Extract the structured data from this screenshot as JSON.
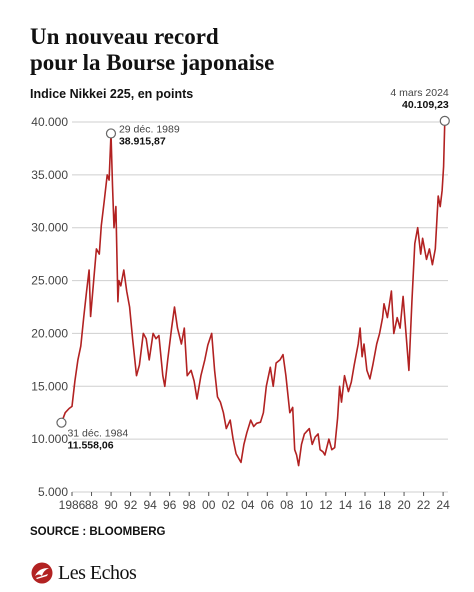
{
  "header": {
    "title_line1": "Un nouveau record",
    "title_line2": "pour la Bourse japonaise",
    "subtitle": "Indice Nikkei 225, en points"
  },
  "footer": {
    "source": "SOURCE : BLOOMBERG",
    "logo_text": "Les Echos"
  },
  "colors": {
    "line": "#b22222",
    "grid": "#cfcfcf",
    "text": "#111111",
    "logo_mark": "#b22222"
  },
  "chart_data": {
    "type": "line",
    "title": "Un nouveau record pour la Bourse japonaise",
    "subtitle": "Indice Nikkei 225, en points",
    "xlabel": "",
    "ylabel": "",
    "ylim": [
      5000,
      40000
    ],
    "xlim": [
      1986,
      2024.5
    ],
    "grid": true,
    "yticks": [
      5000,
      10000,
      15000,
      20000,
      25000,
      30000,
      35000,
      40000
    ],
    "ytick_labels": [
      "5.000",
      "10.000",
      "15.000",
      "20.000",
      "25.000",
      "30.000",
      "35.000",
      "40.000"
    ],
    "xticks": [
      1986,
      1988,
      1990,
      1992,
      1994,
      1996,
      1998,
      2000,
      2002,
      2004,
      2006,
      2008,
      2010,
      2012,
      2014,
      2016,
      2018,
      2020,
      2022,
      2024
    ],
    "xtick_labels": [
      "1986",
      "88",
      "90",
      "92",
      "94",
      "96",
      "98",
      "00",
      "02",
      "04",
      "06",
      "08",
      "10",
      "12",
      "14",
      "16",
      "18",
      "20",
      "22",
      "24"
    ],
    "series": [
      {
        "x": [
          1984.92,
          1985.3,
          1985.7,
          1986.0,
          1986.3,
          1986.6,
          1986.9,
          1987.2,
          1987.5,
          1987.75,
          1987.9,
          1988.2,
          1988.5,
          1988.8,
          1989.0,
          1989.3,
          1989.6,
          1989.8,
          1989.99,
          1990.15,
          1990.3,
          1990.5,
          1990.7,
          1990.8,
          1991.0,
          1991.3,
          1991.6,
          1991.9,
          1992.2,
          1992.6,
          1992.9,
          1993.3,
          1993.6,
          1993.9,
          1994.3,
          1994.6,
          1994.9,
          1995.3,
          1995.5,
          1995.8,
          1996.2,
          1996.5,
          1996.8,
          1997.2,
          1997.5,
          1997.8,
          1998.2,
          1998.5,
          1998.8,
          1999.2,
          1999.6,
          1999.9,
          2000.3,
          2000.6,
          2000.9,
          2001.2,
          2001.5,
          2001.8,
          2002.2,
          2002.5,
          2002.8,
          2003.3,
          2003.6,
          2003.9,
          2004.3,
          2004.6,
          2004.9,
          2005.3,
          2005.6,
          2005.9,
          2006.3,
          2006.6,
          2006.9,
          2007.3,
          2007.6,
          2007.9,
          2008.3,
          2008.6,
          2008.8,
          2009.0,
          2009.2,
          2009.5,
          2009.8,
          2010.3,
          2010.6,
          2010.9,
          2011.2,
          2011.4,
          2011.7,
          2011.9,
          2012.3,
          2012.6,
          2012.9,
          2013.2,
          2013.4,
          2013.6,
          2013.9,
          2014.3,
          2014.6,
          2014.9,
          2015.3,
          2015.5,
          2015.7,
          2015.9,
          2016.2,
          2016.5,
          2016.8,
          2017.2,
          2017.5,
          2017.8,
          2017.95,
          2018.3,
          2018.7,
          2018.95,
          2019.3,
          2019.6,
          2019.9,
          2020.2,
          2020.5,
          2020.8,
          2021.1,
          2021.4,
          2021.7,
          2021.9,
          2022.3,
          2022.6,
          2022.9,
          2023.2,
          2023.5,
          2023.7,
          2023.9,
          2024.05,
          2024.17
        ],
        "values": [
          11558,
          12500,
          12900,
          13100,
          15500,
          17500,
          18800,
          21500,
          24000,
          26000,
          21600,
          24800,
          28000,
          27500,
          30200,
          32500,
          35000,
          34500,
          38916,
          34000,
          30000,
          32000,
          23000,
          25000,
          24500,
          26000,
          24000,
          22500,
          19500,
          16000,
          17000,
          20000,
          19500,
          17500,
          20000,
          19500,
          19800,
          16000,
          15000,
          17500,
          20500,
          22500,
          20500,
          19000,
          20500,
          16000,
          16500,
          15500,
          13800,
          16000,
          17500,
          18900,
          20000,
          16500,
          14000,
          13500,
          12500,
          11000,
          11800,
          10000,
          8600,
          7800,
          9500,
          10600,
          11800,
          11200,
          11500,
          11600,
          12500,
          15000,
          16800,
          15000,
          17200,
          17500,
          18000,
          16000,
          12500,
          13000,
          9000,
          8500,
          7500,
          9500,
          10500,
          11000,
          9500,
          10200,
          10500,
          9000,
          8800,
          8500,
          10000,
          9000,
          9200,
          12000,
          15000,
          13500,
          16000,
          14500,
          15400,
          17000,
          19000,
          20500,
          17800,
          19000,
          16500,
          15700,
          17000,
          19000,
          20000,
          21500,
          22800,
          21500,
          24000,
          20000,
          21500,
          20500,
          23500,
          20000,
          16500,
          23000,
          28500,
          30000,
          27500,
          29000,
          27000,
          28000,
          26500,
          28000,
          33000,
          32000,
          33500,
          35800,
          40109
        ]
      }
    ],
    "annotations": [
      {
        "x": 1984.92,
        "y": 11558,
        "date": "31 déc. 1984",
        "value": "11.558,06"
      },
      {
        "x": 1989.99,
        "y": 38916,
        "date": "29 déc. 1989",
        "value": "38.915,87"
      },
      {
        "x": 2024.17,
        "y": 40109,
        "date": "4 mars 2024",
        "value": "40.109,23"
      }
    ]
  }
}
